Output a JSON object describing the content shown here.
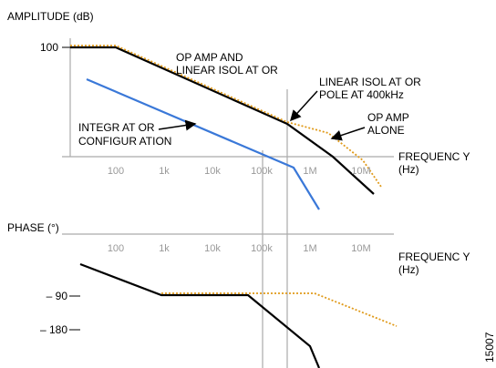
{
  "amplitude_plot": {
    "y_label": "AMPLITUDE (dB)",
    "y_tick": "100",
    "x_ticks": [
      "100",
      "1k",
      "10k",
      "100k",
      "1M",
      "10M"
    ],
    "x_label": [
      "FREQUENC Y",
      "(Hz)"
    ],
    "annotations": {
      "combined": [
        "OP AMP AND",
        "LINEAR ISOL AT OR"
      ],
      "pole": [
        "LINEAR ISOL AT OR",
        "POLE AT 400kHz"
      ],
      "op_amp": [
        "OP AMP",
        "ALONE"
      ],
      "integrator": [
        "INTEGR AT OR",
        "CONFIGUR ATION"
      ]
    }
  },
  "phase_plot": {
    "y_label": "PHASE (°)",
    "y_ticks": [
      "– 90",
      "– 180"
    ],
    "x_ticks": [
      "100",
      "1k",
      "10k",
      "100k",
      "1M",
      "10M"
    ],
    "x_label": [
      "FREQUENC Y",
      "(Hz)"
    ]
  },
  "figure_id": "15007"
}
